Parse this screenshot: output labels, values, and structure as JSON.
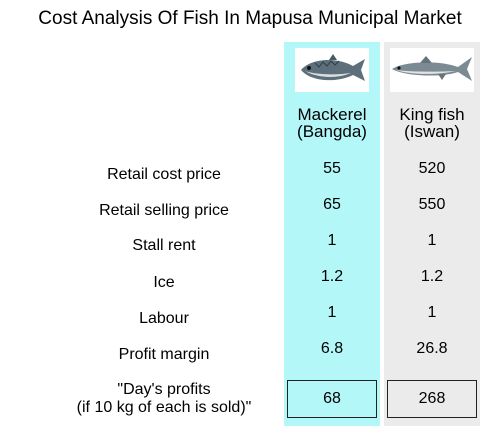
{
  "chart_data": {
    "type": "table",
    "title": "Cost Analysis Of Fish In Mapusa Municipal Market",
    "columns": [
      {
        "name_line1": "Mackerel",
        "name_line2": "(Bangda)",
        "color": "#b3f7f9",
        "image": "mackerel-fish-icon"
      },
      {
        "name_line1": "King fish",
        "name_line2": "(Iswan)",
        "color": "#ebebeb",
        "image": "king-fish-icon"
      }
    ],
    "rows": [
      {
        "label": "Retail cost price",
        "values": [
          "55",
          "520"
        ]
      },
      {
        "label": "Retail selling price",
        "values": [
          "65",
          "550"
        ]
      },
      {
        "label": "Stall rent",
        "values": [
          "1",
          "1"
        ]
      },
      {
        "label": "Ice",
        "values": [
          "1.2",
          "1.2"
        ]
      },
      {
        "label": "Labour",
        "values": [
          "1",
          "1"
        ]
      },
      {
        "label": "Profit margin",
        "values": [
          "6.8",
          "26.8"
        ]
      }
    ],
    "total_row": {
      "label_line1": "\"Day's profits",
      "label_line2": "(if 10 kg of each is sold)\"",
      "values": [
        "68",
        "268"
      ]
    }
  }
}
